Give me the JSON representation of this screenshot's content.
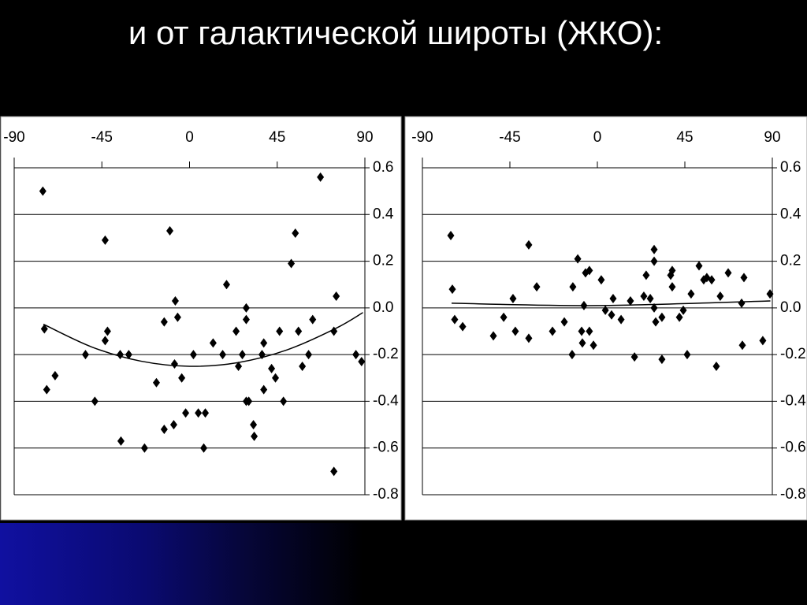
{
  "title": "и от галактической широты (ЖКО):",
  "chart_data": [
    {
      "type": "scatter",
      "xlim": [
        -90,
        90
      ],
      "ylim": [
        -0.8,
        0.6
      ],
      "xticks": [
        -90,
        -45,
        0,
        45,
        90
      ],
      "yticks": [
        0.6,
        0.4,
        0.2,
        {
          "value": 0,
          "label": "0.0"
        },
        -0.2,
        -0.4,
        -0.6,
        -0.8
      ],
      "grid": true,
      "series": [
        {
          "color": "#000000",
          "x": [
            -75.3,
            -74.5,
            -73.3,
            -69,
            -53.4,
            -48.6,
            -43.3,
            -43.3,
            -42.1,
            -35.6,
            -35.2,
            -31.2,
            -23.1,
            -17,
            -13,
            -13,
            -10.1,
            -8.1,
            -7.7,
            -7.3,
            -6.1,
            -4,
            -2,
            2,
            4.5,
            7.3,
            8.1,
            12.1,
            17,
            19,
            23.9,
            25.1,
            27.1,
            29.1,
            29.1,
            29.1,
            30.4,
            32.8,
            33.2,
            37.2,
            38.1,
            38.1,
            42.1,
            44.1,
            46.2,
            48.2,
            52.2,
            54.3,
            55.9,
            57.9,
            61.1,
            63.2,
            67.2,
            74.1,
            74.1,
            75.3,
            85.4,
            88.3
          ],
          "values": [
            0.5,
            -0.09,
            -0.35,
            -0.29,
            -0.2,
            -0.4,
            0.29,
            -0.14,
            -0.1,
            -0.2,
            -0.57,
            -0.2,
            -0.6,
            -0.32,
            -0.06,
            -0.52,
            0.33,
            -0.5,
            -0.24,
            0.03,
            -0.04,
            -0.3,
            -0.45,
            -0.2,
            -0.45,
            -0.6,
            -0.45,
            -0.15,
            -0.2,
            0.1,
            -0.1,
            -0.25,
            -0.2,
            0,
            -0.05,
            -0.4,
            -0.4,
            -0.5,
            -0.55,
            -0.2,
            -0.15,
            -0.35,
            -0.26,
            -0.3,
            -0.1,
            -0.4,
            0.19,
            0.32,
            -0.1,
            -0.25,
            -0.2,
            -0.05,
            0.56,
            -0.1,
            -0.7,
            0.05,
            -0.2,
            -0.23
          ]
        }
      ],
      "trend": {
        "color": "#000000",
        "x": [
          -75,
          -50,
          -25,
          0,
          25,
          50,
          75,
          89
        ],
        "values": [
          -0.07,
          -0.168,
          -0.228,
          -0.25,
          -0.234,
          -0.18,
          -0.088,
          -0.02
        ]
      }
    },
    {
      "type": "scatter",
      "xlim": [
        -90,
        90
      ],
      "ylim": [
        -0.8,
        0.6
      ],
      "xticks": [
        -90,
        -45,
        0,
        45,
        90
      ],
      "yticks": [
        0.6,
        0.4,
        0.2,
        {
          "value": 0,
          "label": "0.0"
        },
        -0.2,
        -0.4,
        -0.6,
        -0.8
      ],
      "grid": true,
      "series": [
        {
          "color": "#000000",
          "x": [
            -75.4,
            -74.6,
            -73.4,
            -69.3,
            -53.5,
            -48.2,
            -43.4,
            -42.2,
            -35.3,
            -35.3,
            -31.2,
            -23.1,
            -17,
            -13,
            -12.6,
            -10.1,
            -8.1,
            -7.7,
            -6.9,
            -6.1,
            -4.1,
            -4.1,
            -2,
            2,
            4.1,
            7.3,
            8.1,
            12.2,
            17,
            19.1,
            23.9,
            25.1,
            27.2,
            29.2,
            29.2,
            29.2,
            30,
            33.2,
            33.2,
            37.7,
            38.5,
            38.5,
            42.2,
            44.2,
            46.2,
            48.2,
            52.3,
            54.7,
            56.3,
            58.8,
            61.2,
            63.2,
            67.3,
            74.2,
            74.6,
            75.4,
            85.1,
            88.8
          ],
          "values": [
            0.31,
            0.08,
            -0.05,
            -0.08,
            -0.12,
            -0.04,
            0.04,
            -0.1,
            0.27,
            -0.13,
            0.09,
            -0.1,
            -0.06,
            -0.2,
            0.09,
            0.21,
            -0.1,
            -0.15,
            0.01,
            0.15,
            0.16,
            -0.1,
            -0.16,
            0.12,
            -0.01,
            -0.03,
            0.04,
            -0.05,
            0.03,
            -0.21,
            0.05,
            0.14,
            0.04,
            0.25,
            0.2,
            0,
            -0.06,
            -0.04,
            -0.22,
            0.14,
            0.16,
            0.09,
            -0.04,
            -0.01,
            -0.2,
            0.06,
            0.18,
            0.12,
            0.13,
            0.12,
            -0.25,
            0.05,
            0.15,
            0.02,
            -0.16,
            0.13,
            -0.14,
            0.06
          ]
        }
      ],
      "trend": {
        "color": "#000000",
        "x": [
          -75,
          0,
          89
        ],
        "values": [
          0.02,
          0.01,
          0.03
        ]
      }
    }
  ]
}
